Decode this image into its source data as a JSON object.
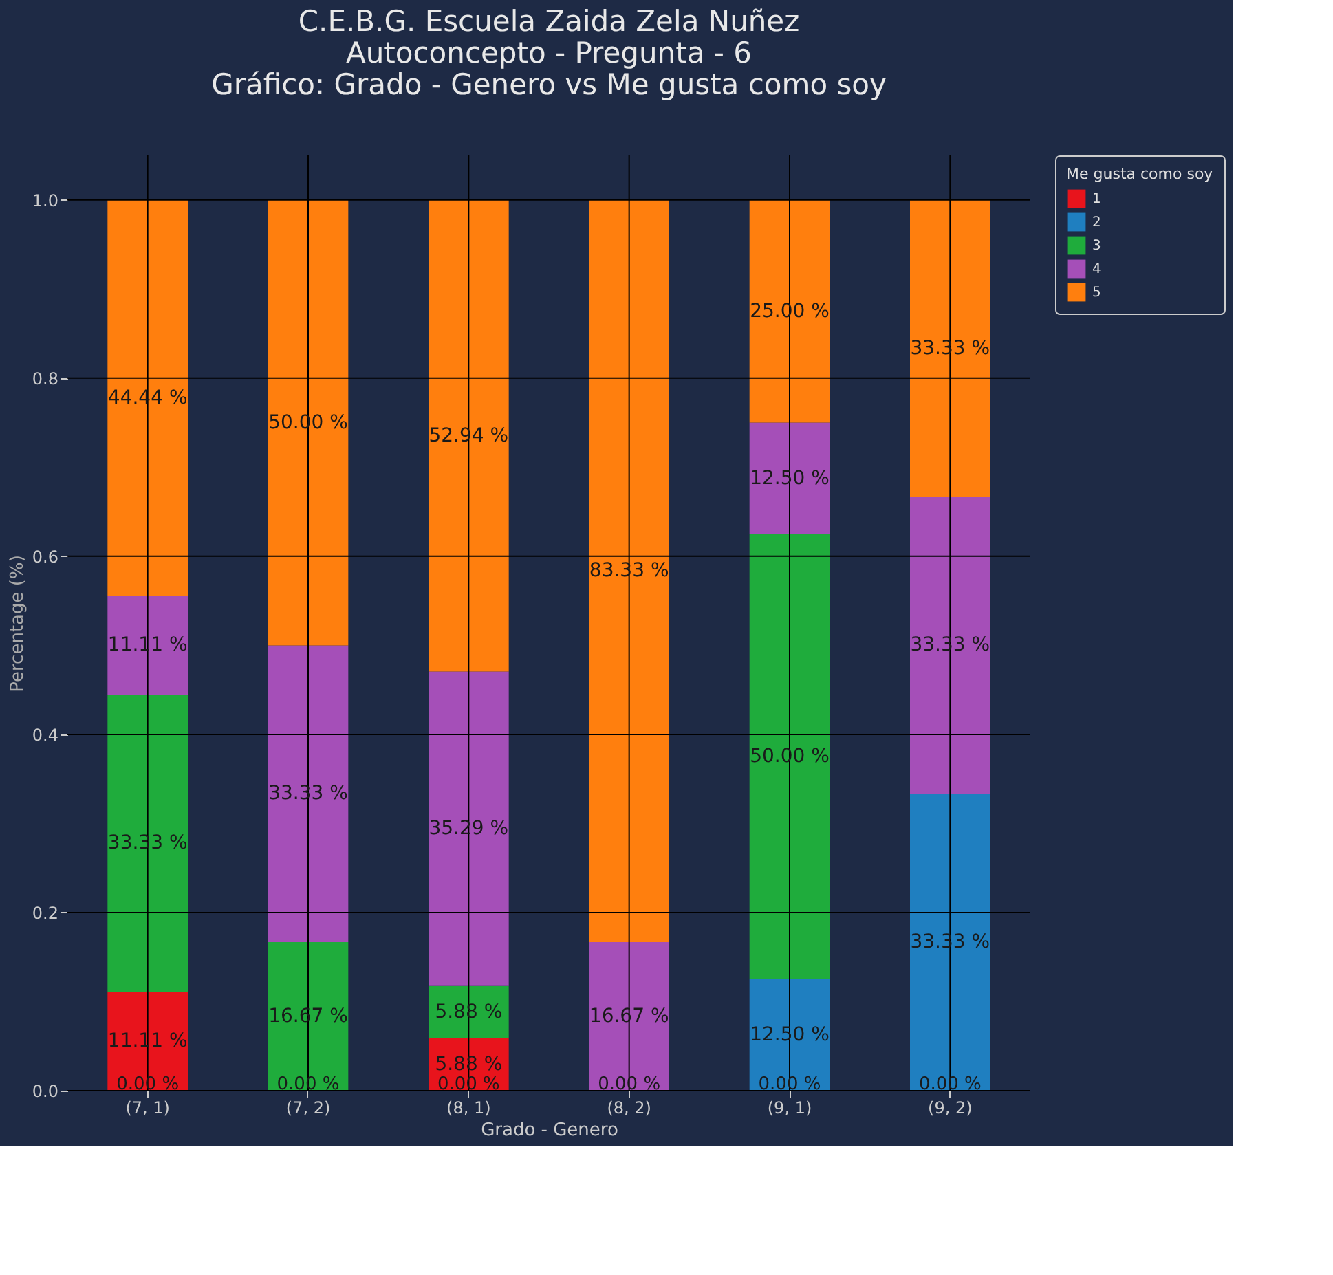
{
  "chart_data": {
    "type": "bar",
    "title": "C.E.B.G. Escuela Zaida Zela Nuñez\nAutoconcepto - Pregunta - 6\nGráfico: Grado - Genero vs Me gusta como soy",
    "xlabel": "Grado - Genero",
    "ylabel": "Percentage (%)",
    "legend_title": "Me gusta como soy",
    "categories": [
      "(7, 1)",
      "(7, 2)",
      "(8, 1)",
      "(8, 2)",
      "(9, 1)",
      "(9, 2)"
    ],
    "stacked": true,
    "grid": true,
    "legend": "right",
    "ylim": [
      0,
      1.05
    ],
    "yticks": [
      {
        "value": 0,
        "label": "0.0"
      },
      0.2,
      0.4,
      0.6,
      0.8,
      {
        "value": 1,
        "label": "1.0"
      }
    ],
    "series": [
      {
        "name": "1",
        "color": "#e8141c",
        "values": [
          0.1111,
          0,
          0.0588,
          0,
          0,
          0
        ],
        "value_labels": [
          "11.11 %",
          null,
          "5.88 %",
          null,
          null,
          null
        ]
      },
      {
        "name": "2",
        "color": "#1f7fc0",
        "values": [
          0,
          0,
          0,
          0,
          0.125,
          0.3333
        ],
        "value_labels": [
          null,
          null,
          null,
          null,
          "12.50 %",
          "33.33 %"
        ]
      },
      {
        "name": "3",
        "color": "#1fac3c",
        "values": [
          0.3333,
          0.1667,
          0.0588,
          0,
          0.5,
          0
        ],
        "value_labels": [
          "33.33 %",
          "16.67 %",
          "5.88 %",
          null,
          "50.00 %",
          null
        ]
      },
      {
        "name": "4",
        "color": "#a54fb8",
        "values": [
          0.1111,
          0.3333,
          0.3529,
          0.1667,
          0.125,
          0.3333
        ],
        "value_labels": [
          "11.11 %",
          "33.33 %",
          "35.29 %",
          "16.67 %",
          "12.50 %",
          "33.33 %"
        ]
      },
      {
        "name": "5",
        "color": "#ff7f0e",
        "values": [
          0.4444,
          0.5,
          0.5294,
          0.8333,
          0.25,
          0.3333
        ],
        "value_labels": [
          "44.44 %",
          "50.00 %",
          "52.94 %",
          "83.33 %",
          "25.00 %",
          "33.33 %"
        ]
      }
    ],
    "annotations": [
      {
        "text": "0.00 %",
        "x": "(7, 1)",
        "y": 0
      },
      {
        "text": "0.00 %",
        "x": "(7, 2)",
        "y": 0
      },
      {
        "text": "0.00 %",
        "x": "(8, 1)",
        "y": 0
      },
      {
        "text": "0.00 %",
        "x": "(8, 2)",
        "y": 0
      },
      {
        "text": "0.00 %",
        "x": "(9, 1)",
        "y": 0
      },
      {
        "text": "0.00 %",
        "x": "(9, 2)",
        "y": 0
      }
    ]
  }
}
